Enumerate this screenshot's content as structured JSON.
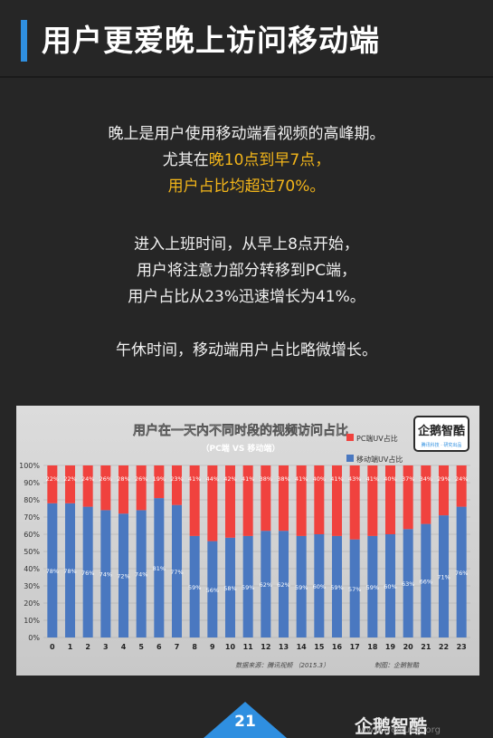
{
  "header": {
    "title": "用户更爱晚上访问移动端"
  },
  "paragraphs": [
    {
      "line1": "晚上是用户使用移动端看视频的高峰期。",
      "line2_prefix": "尤其在",
      "line2_hl": "晚10点到早7点，",
      "line3": "用户占比均超过70%。"
    },
    {
      "line1": "进入上班时间，从早上8点开始，",
      "line2": "用户将注意力部分转移到PC端，",
      "line3": "用户占比从23%迅速增长为41%。"
    },
    {
      "line1": "午休时间，移动端用户占比略微增长。"
    }
  ],
  "colors": {
    "accent": "#2f8fe0",
    "highlight": "#f2b51a",
    "pc": "#f0423e",
    "mobile": "#4a78c0"
  },
  "chart_data": {
    "type": "bar",
    "stacked": true,
    "title": "用户在一天内不同时段的视频访问占比",
    "subtitle": "（PC端 VS 移动端）",
    "categories": [
      "0",
      "1",
      "2",
      "3",
      "4",
      "5",
      "6",
      "7",
      "8",
      "9",
      "10",
      "11",
      "12",
      "13",
      "14",
      "15",
      "16",
      "17",
      "18",
      "19",
      "20",
      "21",
      "22",
      "23"
    ],
    "series": [
      {
        "name": "移动端UV占比",
        "values": [
          78,
          78,
          76,
          74,
          72,
          74,
          81,
          77,
          59,
          56,
          58,
          59,
          62,
          62,
          59,
          60,
          59,
          57,
          59,
          60,
          63,
          66,
          71,
          76
        ]
      },
      {
        "name": "PC端UV占比",
        "values": [
          22,
          22,
          24,
          26,
          28,
          26,
          19,
          23,
          41,
          44,
          42,
          41,
          38,
          38,
          41,
          40,
          41,
          43,
          41,
          40,
          37,
          34,
          29,
          24
        ]
      }
    ],
    "ylim": [
      0,
      100
    ],
    "yticks": [
      "0%",
      "10%",
      "20%",
      "30%",
      "40%",
      "50%",
      "60%",
      "70%",
      "80%",
      "90%",
      "100%"
    ],
    "legend_position": "top-right",
    "source": "数据来源：腾讯视频 （2015.3）",
    "producer": "制图：企鹅智酷",
    "logo_text": "企鹅智酷",
    "logo_sub": "腾讯科技 · 研究出品"
  },
  "footer": {
    "page_number": "21",
    "brand": "企鹅智酷",
    "site": "www.weixuezi.org"
  }
}
